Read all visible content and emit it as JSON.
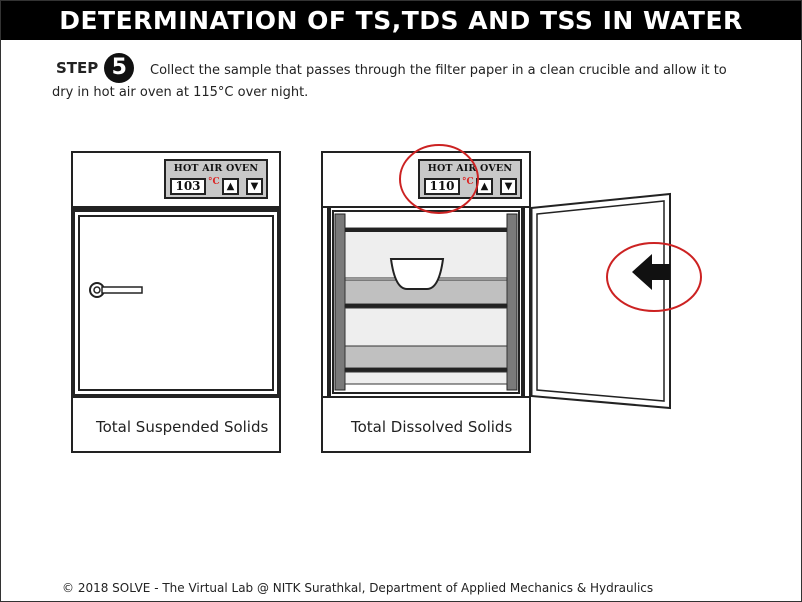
{
  "page": {
    "title": "DETERMINATION OF TS,TDS AND TSS IN WATER",
    "step": {
      "label": "STEP",
      "number": "5",
      "instruction_line1": "Collect the sample that passes through the filter paper in a clean crucible and allow it to",
      "instruction_line2": "dry in hot air oven at 115°C over night."
    },
    "footer": "© 2018 SOLVE - The Virtual Lab @ NITK Surathkal, Department of Applied Mechanics & Hydraulics"
  },
  "ovens": [
    {
      "panel_label": "HOT AIR OVEN",
      "temperature": "103",
      "unit": "°C",
      "up_icon": "triangle-up",
      "down_icon": "triangle-down",
      "caption": "Total Suspended Solids"
    },
    {
      "panel_label": "HOT AIR OVEN",
      "temperature": "110",
      "unit": "°C",
      "up_icon": "triangle-up",
      "down_icon": "triangle-down",
      "caption": "Total Dissolved Solids"
    }
  ],
  "colors": {
    "highlight_circle": "#cc2222",
    "panel_gray": "#c8c8c8",
    "shelf_gray": "#c0c0c0",
    "title_bg": "#000000"
  }
}
